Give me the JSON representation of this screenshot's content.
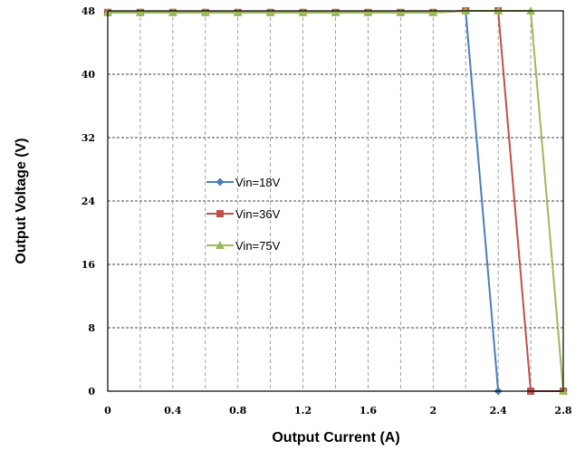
{
  "chart_data": {
    "type": "line",
    "xlabel": "Output Current (A)",
    "ylabel": "Output Voltage (V)",
    "xlim": [
      0,
      2.8
    ],
    "ylim": [
      0,
      48
    ],
    "x_ticks": [
      "0",
      "0.4",
      "0.8",
      "1.2",
      "1.6",
      "2",
      "2.4",
      "2.8"
    ],
    "y_ticks": [
      "0",
      "8",
      "16",
      "24",
      "32",
      "40",
      "48"
    ],
    "grid": true,
    "legend_position": "center-left",
    "series": [
      {
        "name": "Vin=18V",
        "color": "#4a7ebf",
        "marker": "diamond",
        "x": [
          0,
          0.2,
          0.4,
          0.6,
          0.8,
          1.0,
          1.2,
          1.4,
          1.6,
          1.8,
          2.0,
          2.2,
          2.4
        ],
        "y": [
          47.8,
          47.8,
          47.8,
          47.8,
          47.8,
          47.8,
          47.8,
          47.8,
          47.8,
          47.8,
          47.8,
          48.0,
          0
        ]
      },
      {
        "name": "Vin=36V",
        "color": "#c0504d",
        "marker": "square",
        "x": [
          0,
          0.2,
          0.4,
          0.6,
          0.8,
          1.0,
          1.2,
          1.4,
          1.6,
          1.8,
          2.0,
          2.2,
          2.4,
          2.6,
          2.8
        ],
        "y": [
          47.8,
          47.8,
          47.8,
          47.8,
          47.8,
          47.8,
          47.8,
          47.8,
          47.8,
          47.8,
          47.8,
          48.0,
          48.0,
          0,
          0
        ]
      },
      {
        "name": "Vin=75V",
        "color": "#9bbb59",
        "marker": "triangle",
        "x": [
          0,
          0.2,
          0.4,
          0.6,
          0.8,
          1.0,
          1.2,
          1.4,
          1.6,
          1.8,
          2.0,
          2.2,
          2.4,
          2.6,
          2.8
        ],
        "y": [
          47.8,
          47.8,
          47.8,
          47.8,
          47.8,
          47.8,
          47.8,
          47.8,
          47.8,
          47.8,
          47.8,
          48.0,
          48.0,
          48.0,
          0
        ]
      }
    ]
  }
}
